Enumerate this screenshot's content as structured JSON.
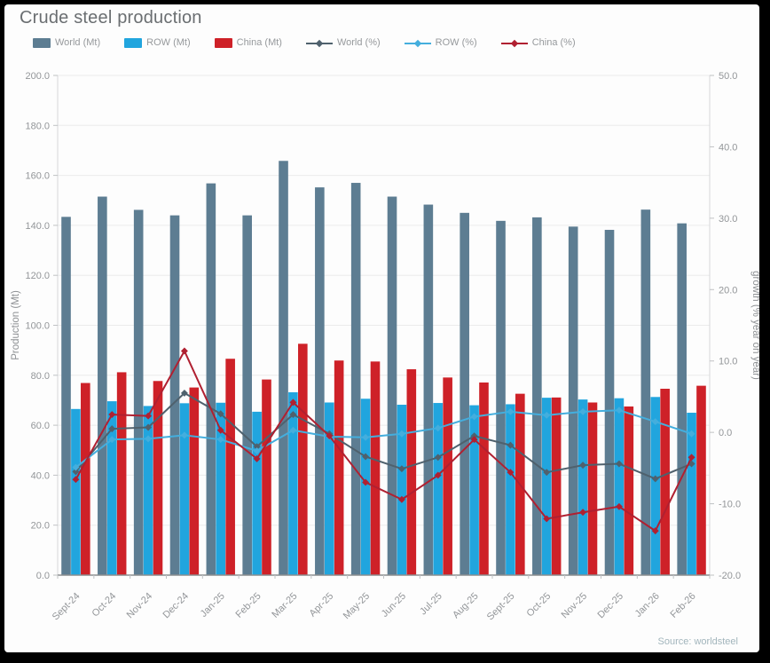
{
  "title": "Crude steel production",
  "source": "Source: worldsteel",
  "colors": {
    "world_bar": "#5d7d92",
    "row_bar": "#21a5de",
    "china_bar": "#ce2128",
    "world_line": "#4f616d",
    "row_line": "#44aedd",
    "china_line": "#b02031",
    "grid": "#ececec",
    "axis_line": "#d6d8d9",
    "tick": "#c0c2c4",
    "bottom_axis": "#8b8e90",
    "axis_text": "#939699",
    "axis_title_text": "#8d9093"
  },
  "legend": [
    {
      "label": "World (Mt)",
      "type": "bar",
      "color_key": "world_bar"
    },
    {
      "label": "ROW (Mt)",
      "type": "bar",
      "color_key": "row_bar"
    },
    {
      "label": "China (Mt)",
      "type": "bar",
      "color_key": "china_bar"
    },
    {
      "label": "World (%)",
      "type": "line",
      "color_key": "world_line"
    },
    {
      "label": "ROW (%)",
      "type": "line",
      "color_key": "row_line"
    },
    {
      "label": "China (%)",
      "type": "line",
      "color_key": "china_line"
    }
  ],
  "chart_data": {
    "type": "bar",
    "subtype": "grouped-bars-with-lines-dual-axis",
    "title": "Crude steel production",
    "categories": [
      "Sept-24",
      "Oct-24",
      "Nov-24",
      "Dec-24",
      "Jan-25",
      "Feb-25",
      "Mar-25",
      "Apr-25",
      "May-25",
      "Jun-25",
      "Jul-25",
      "Aug-25",
      "Sept-25",
      "Oct-25",
      "Nov-25",
      "Dec-25",
      "Jan-26",
      "Feb-26"
    ],
    "bar_series": [
      {
        "name": "World (Mt)",
        "axis": "left",
        "color_key": "world_bar",
        "values": [
          143.4,
          151.5,
          146.2,
          144.0,
          156.8,
          144.0,
          165.8,
          155.2,
          157.0,
          151.5,
          148.3,
          145.0,
          141.8,
          143.2,
          139.5,
          138.2,
          146.3,
          140.8
        ]
      },
      {
        "name": "ROW (Mt)",
        "axis": "left",
        "color_key": "row_bar",
        "values": [
          66.5,
          69.6,
          67.7,
          68.8,
          69.0,
          65.4,
          73.2,
          69.1,
          70.6,
          68.2,
          68.9,
          68.0,
          68.4,
          71.0,
          70.3,
          70.8,
          71.3,
          65.0
        ]
      },
      {
        "name": "China (Mt)",
        "axis": "left",
        "color_key": "china_bar",
        "values": [
          76.9,
          81.2,
          77.7,
          75.1,
          86.6,
          78.3,
          92.6,
          85.9,
          85.5,
          82.4,
          79.1,
          77.1,
          72.6,
          71.1,
          69.1,
          67.5,
          74.6,
          75.8
        ]
      }
    ],
    "line_series": [
      {
        "name": "World (%)",
        "axis": "right",
        "color_key": "world_line",
        "values": [
          -5.5,
          0.5,
          0.7,
          5.5,
          2.6,
          -2.0,
          2.5,
          -0.2,
          -3.4,
          -5.1,
          -3.5,
          -0.5,
          -1.8,
          -5.6,
          -4.6,
          -4.4,
          -6.5,
          -4.4
        ]
      },
      {
        "name": "ROW (%)",
        "axis": "right",
        "color_key": "row_line",
        "values": [
          -4.9,
          -1.0,
          -0.9,
          -0.4,
          -1.0,
          -2.6,
          0.3,
          -0.6,
          -0.7,
          -0.2,
          0.6,
          2.2,
          2.9,
          2.4,
          2.9,
          3.1,
          1.5,
          -0.2
        ]
      },
      {
        "name": "China (%)",
        "axis": "right",
        "color_key": "china_line",
        "values": [
          -6.6,
          2.5,
          2.3,
          11.4,
          0.3,
          -3.7,
          4.2,
          -0.5,
          -7.0,
          -9.4,
          -6.0,
          -1.0,
          -5.6,
          -12.1,
          -11.2,
          -10.4,
          -13.8,
          -3.5
        ]
      }
    ],
    "left_axis": {
      "label": "Production (Mt)",
      "min": 0,
      "max": 200,
      "step": 20,
      "tick_format": "one_decimal"
    },
    "right_axis": {
      "label": "growth (% year on year)",
      "min": -20,
      "max": 50,
      "step": 10,
      "tick_format": "one_decimal"
    },
    "grid": true,
    "legend_position": "top"
  }
}
